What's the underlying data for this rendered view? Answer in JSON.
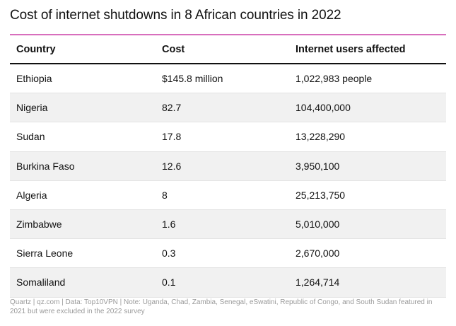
{
  "title": "Cost of internet shutdowns in 8 African countries in 2022",
  "colors": {
    "accent": "#d86fbd",
    "stripe": "#f1f1f1",
    "footnote": "#9a9a9a"
  },
  "table": {
    "headers": [
      "Country",
      "Cost",
      "Internet users affected"
    ],
    "rows": [
      {
        "country": "Ethiopia",
        "cost": "$145.8 million",
        "users": "1,022,983 people"
      },
      {
        "country": "Nigeria",
        "cost": "82.7",
        "users": "104,400,000"
      },
      {
        "country": "Sudan",
        "cost": "17.8",
        "users": "13,228,290"
      },
      {
        "country": "Burkina Faso",
        "cost": "12.6",
        "users": "3,950,100"
      },
      {
        "country": "Algeria",
        "cost": "8",
        "users": "25,213,750"
      },
      {
        "country": "Zimbabwe",
        "cost": "1.6",
        "users": "5,010,000"
      },
      {
        "country": "Sierra Leone",
        "cost": "0.3",
        "users": "2,670,000"
      },
      {
        "country": "Somaliland",
        "cost": "0.1",
        "users": "1,264,714"
      }
    ]
  },
  "footnote": "Quartz | qz.com | Data: Top10VPN | Note: Uganda, Chad, Zambia, Senegal, eSwatini, Republic of Congo, and South Sudan featured in 2021 but were excluded in the 2022 survey"
}
